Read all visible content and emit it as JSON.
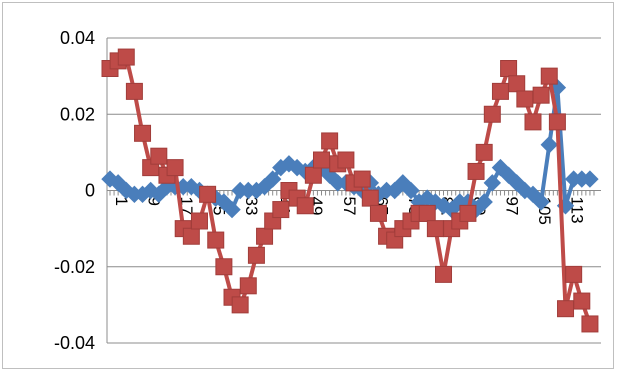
{
  "chart_data": {
    "type": "line",
    "title": "",
    "xlabel": "",
    "ylabel": "",
    "ylim": [
      -0.04,
      0.04
    ],
    "yticks": [
      {
        "value": 0.04,
        "label": "0.04"
      },
      {
        "value": 0.02,
        "label": "0.02"
      },
      {
        "value": 0,
        "label": "0"
      },
      {
        "value": -0.02,
        "label": "-0.02"
      },
      {
        "value": -0.04,
        "label": "-0.04"
      }
    ],
    "xlim": [
      1,
      120
    ],
    "xticks": [
      1,
      9,
      17,
      25,
      33,
      41,
      49,
      57,
      65,
      73,
      81,
      89,
      97,
      105,
      113
    ],
    "xtick_labels": [
      "1",
      "9",
      "17",
      "25",
      "33",
      "41",
      "49",
      "57",
      "65",
      "73",
      "81",
      "89",
      "97",
      "105",
      "113"
    ],
    "grid": true,
    "legend": "none",
    "series": [
      {
        "marker": "diamond",
        "color": "#4a7ebb",
        "x": [
          1,
          3,
          5,
          7,
          9,
          11,
          13,
          15,
          17,
          19,
          21,
          23,
          25,
          27,
          29,
          31,
          33,
          35,
          37,
          39,
          41,
          43,
          45,
          47,
          49,
          51,
          53,
          55,
          57,
          59,
          61,
          63,
          65,
          67,
          69,
          71,
          73,
          75,
          77,
          79,
          81,
          83,
          85,
          87,
          89,
          91,
          93,
          95,
          97,
          99,
          101,
          103,
          105,
          107,
          109,
          111,
          113,
          115,
          117,
          119
        ],
        "y": [
          0.003,
          0.002,
          0.0,
          -0.001,
          -0.001,
          0.0,
          -0.001,
          0.001,
          0.001,
          0.001,
          0.001,
          0.0,
          -0.001,
          -0.002,
          -0.003,
          -0.005,
          0.0,
          0.0,
          0.0,
          0.001,
          0.003,
          0.006,
          0.007,
          0.006,
          0.005,
          0.006,
          0.006,
          0.004,
          0.002,
          0.002,
          0.001,
          0.0,
          0.002,
          -0.001,
          0.0,
          0.0,
          0.002,
          0.0,
          -0.003,
          -0.002,
          -0.003,
          -0.004,
          -0.005,
          -0.003,
          -0.003,
          -0.005,
          -0.003,
          0.002,
          0.006,
          0.004,
          0.002,
          0.0,
          -0.001,
          -0.003,
          0.012,
          0.027,
          -0.004,
          0.003,
          0.003,
          0.003
        ]
      },
      {
        "marker": "square",
        "color": "#be4b48",
        "x": [
          1,
          3,
          5,
          7,
          9,
          11,
          13,
          15,
          17,
          19,
          21,
          23,
          25,
          27,
          29,
          31,
          33,
          35,
          37,
          39,
          41,
          43,
          45,
          47,
          49,
          51,
          53,
          55,
          57,
          59,
          61,
          63,
          65,
          67,
          69,
          71,
          73,
          75,
          77,
          79,
          81,
          83,
          85,
          87,
          89,
          91,
          93,
          95,
          97,
          99,
          101,
          103,
          105,
          107,
          109,
          111,
          113,
          115,
          117,
          119
        ],
        "y": [
          0.032,
          0.034,
          0.035,
          0.026,
          0.015,
          0.006,
          0.009,
          0.004,
          0.006,
          -0.01,
          -0.012,
          -0.008,
          -0.001,
          -0.013,
          -0.02,
          -0.028,
          -0.03,
          -0.025,
          -0.017,
          -0.012,
          -0.008,
          -0.005,
          0.0,
          -0.002,
          -0.004,
          0.004,
          0.008,
          0.013,
          0.007,
          0.008,
          0.002,
          0.003,
          -0.002,
          -0.006,
          -0.012,
          -0.013,
          -0.01,
          -0.008,
          -0.006,
          -0.006,
          -0.01,
          -0.022,
          -0.01,
          -0.008,
          -0.006,
          0.005,
          0.01,
          0.02,
          0.026,
          0.032,
          0.028,
          0.024,
          0.018,
          0.025,
          0.03,
          0.018,
          -0.031,
          -0.022,
          -0.029,
          -0.035
        ]
      }
    ]
  }
}
